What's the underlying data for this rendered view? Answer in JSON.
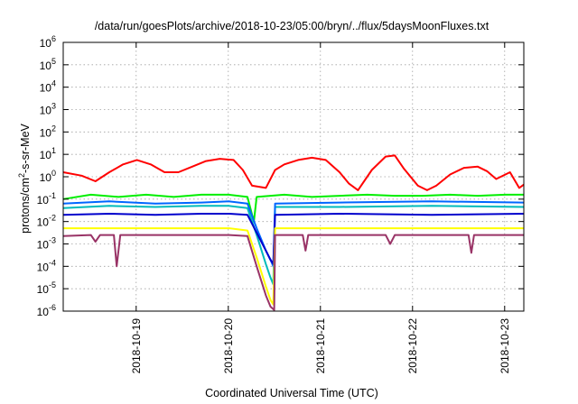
{
  "chart_data": {
    "type": "line",
    "title": "/data/run/goesPlots/archive/2018-10-23/05:00/bryn/../flux/5daysMoonFluxes.txt",
    "xlabel": "Coordinated Universal Time (UTC)",
    "ylabel_parts": [
      "protons/cm",
      "2",
      "-s-sr-MeV"
    ],
    "y_scale": "log",
    "ylim": [
      -6,
      6
    ],
    "y_ticks": [
      {
        "base": "10",
        "exp": "6",
        "v": 6
      },
      {
        "base": "10",
        "exp": "5",
        "v": 5
      },
      {
        "base": "10",
        "exp": "4",
        "v": 4
      },
      {
        "base": "10",
        "exp": "3",
        "v": 3
      },
      {
        "base": "10",
        "exp": "2",
        "v": 2
      },
      {
        "base": "10",
        "exp": "1",
        "v": 1
      },
      {
        "base": "10",
        "exp": "0",
        "v": 0
      },
      {
        "base": "10",
        "exp": "-1",
        "v": -1
      },
      {
        "base": "10",
        "exp": "-2",
        "v": -2
      },
      {
        "base": "10",
        "exp": "-3",
        "v": -3
      },
      {
        "base": "10",
        "exp": "-4",
        "v": -4
      },
      {
        "base": "10",
        "exp": "-5",
        "v": -5
      },
      {
        "base": "10",
        "exp": "-6",
        "v": -6
      }
    ],
    "xlim": [
      "2018-10-18 05:00",
      "2018-10-23 05:00"
    ],
    "x_ticks": [
      {
        "label": "2018-10-19",
        "day": 0.792
      },
      {
        "label": "2018-10-20",
        "day": 1.792
      },
      {
        "label": "2018-10-21",
        "day": 2.792
      },
      {
        "label": "2018-10-22",
        "day": 3.792
      },
      {
        "label": "2018-10-23",
        "day": 4.792
      }
    ],
    "grid": true,
    "series": [
      {
        "color": "#ff0000",
        "x": [
          0.0,
          0.2,
          0.35,
          0.5,
          0.65,
          0.8,
          0.95,
          1.1,
          1.25,
          1.4,
          1.55,
          1.7,
          1.85,
          1.95,
          2.05,
          2.2,
          2.3,
          2.4,
          2.55,
          2.7,
          2.85,
          3.0,
          3.1,
          3.2,
          3.35,
          3.5,
          3.6,
          3.7,
          3.85,
          3.95,
          4.05,
          4.2,
          4.35,
          4.5,
          4.6,
          4.7,
          4.85,
          4.95,
          5.0
        ],
        "y": [
          0.2,
          0.05,
          -0.2,
          0.2,
          0.55,
          0.75,
          0.55,
          0.2,
          0.2,
          0.45,
          0.7,
          0.8,
          0.75,
          0.3,
          -0.4,
          -0.5,
          0.3,
          0.55,
          0.75,
          0.85,
          0.75,
          0.2,
          -0.3,
          -0.6,
          0.3,
          0.9,
          0.95,
          0.35,
          -0.4,
          -0.6,
          -0.4,
          0.1,
          0.4,
          0.45,
          0.25,
          -0.1,
          0.2,
          -0.5,
          -0.35
        ]
      },
      {
        "color": "#00ee00",
        "x": [
          0.0,
          0.3,
          0.6,
          0.9,
          1.2,
          1.5,
          1.8,
          2.0,
          2.07,
          2.1,
          2.4,
          2.7,
          3.0,
          3.3,
          3.6,
          3.9,
          4.2,
          4.5,
          4.8,
          5.0
        ],
        "y": [
          -1.0,
          -0.8,
          -0.9,
          -0.8,
          -0.9,
          -0.8,
          -0.8,
          -0.9,
          -2.0,
          -0.9,
          -0.8,
          -0.9,
          -0.85,
          -0.8,
          -0.85,
          -0.85,
          -0.8,
          -0.85,
          -0.8,
          -0.8
        ]
      },
      {
        "color": "#00bbbb",
        "x": [
          0.0,
          0.5,
          1.0,
          1.5,
          1.8,
          2.0,
          2.1,
          2.2,
          2.25,
          2.28,
          2.3,
          3.0,
          4.0,
          5.0
        ],
        "y": [
          -1.4,
          -1.3,
          -1.35,
          -1.3,
          -1.3,
          -1.4,
          -2.6,
          -3.9,
          -4.5,
          -4.8,
          -1.35,
          -1.35,
          -1.3,
          -1.35
        ]
      },
      {
        "color": "#0066ff",
        "x": [
          0.0,
          0.5,
          1.0,
          1.5,
          1.8,
          2.0,
          2.1,
          2.2,
          2.26,
          2.28,
          2.3,
          3.0,
          4.0,
          5.0
        ],
        "y": [
          -1.2,
          -1.1,
          -1.2,
          -1.15,
          -1.1,
          -1.2,
          -2.3,
          -3.3,
          -3.8,
          -4.0,
          -1.2,
          -1.15,
          -1.1,
          -1.15
        ]
      },
      {
        "color": "#0000cc",
        "x": [
          0.0,
          0.5,
          1.0,
          1.5,
          1.8,
          2.0,
          2.1,
          2.2,
          2.25,
          2.28,
          2.3,
          3.0,
          4.0,
          5.0
        ],
        "y": [
          -1.7,
          -1.65,
          -1.7,
          -1.65,
          -1.65,
          -1.7,
          -2.5,
          -3.3,
          -3.7,
          -3.9,
          -1.7,
          -1.65,
          -1.7,
          -1.65
        ]
      },
      {
        "color": "#ffff00",
        "x": [
          0.0,
          0.5,
          1.0,
          1.5,
          1.8,
          2.0,
          2.1,
          2.2,
          2.25,
          2.28,
          2.3,
          3.0,
          4.0,
          5.0
        ],
        "y": [
          -2.3,
          -2.3,
          -2.3,
          -2.3,
          -2.3,
          -2.4,
          -3.6,
          -4.9,
          -5.5,
          -5.7,
          -2.3,
          -2.3,
          -2.3,
          -2.3
        ]
      },
      {
        "color": "#993366",
        "x": [
          0.0,
          0.3,
          0.35,
          0.4,
          0.55,
          0.58,
          0.62,
          0.9,
          1.2,
          1.5,
          1.8,
          2.0,
          2.1,
          2.2,
          2.25,
          2.29,
          2.3,
          2.6,
          2.63,
          2.66,
          3.0,
          3.5,
          3.55,
          3.6,
          4.4,
          4.43,
          4.46,
          5.0
        ],
        "y": [
          -2.65,
          -2.6,
          -2.9,
          -2.6,
          -2.6,
          -4.0,
          -2.6,
          -2.6,
          -2.6,
          -2.6,
          -2.6,
          -2.65,
          -4.0,
          -5.3,
          -5.8,
          -5.95,
          -2.6,
          -2.6,
          -3.3,
          -2.6,
          -2.6,
          -2.6,
          -3.0,
          -2.6,
          -2.6,
          -3.4,
          -2.6,
          -2.6
        ]
      }
    ]
  }
}
